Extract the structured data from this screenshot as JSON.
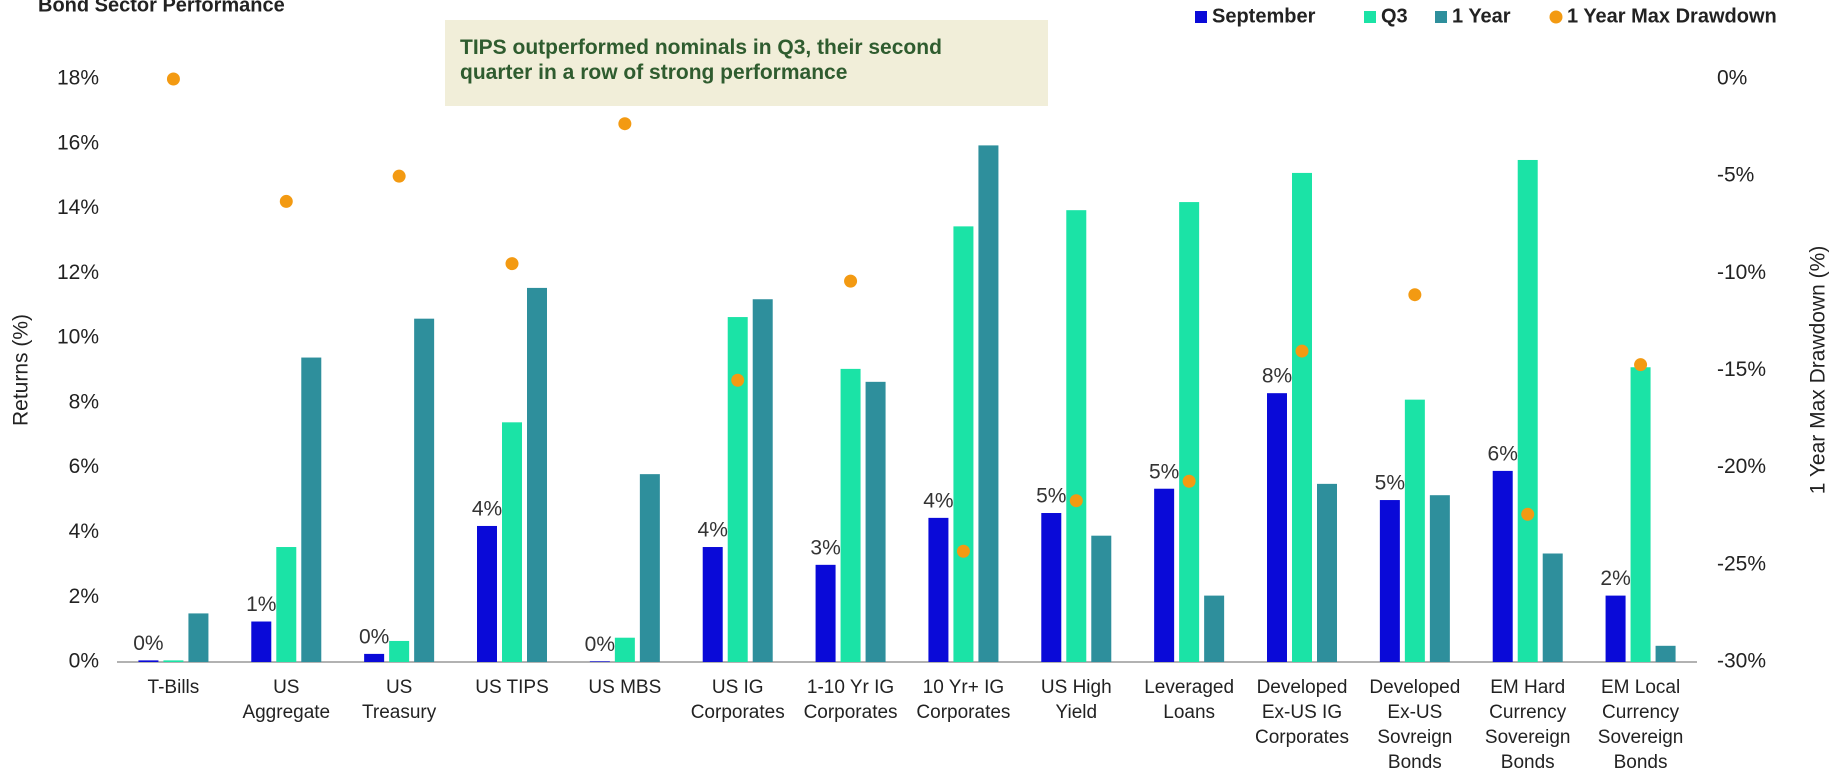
{
  "chart_data": {
    "type": "bar",
    "title": "Bond Sector Performance",
    "annotation": "TIPS outperformed nominals in Q3, their second\nquarter in a row of strong performance",
    "ylabel": "Returns (%)",
    "y2label": "1 Year Max Drawdown (%)",
    "categories": [
      "T-Bills",
      "US\nAggregate",
      "US\nTreasury",
      "US TIPS",
      "US MBS",
      "US IG\nCorporates",
      "1-10 Yr IG\nCorporates",
      "10 Yr+ IG\nCorporates",
      "US High\nYield",
      "Leveraged\nLoans",
      "Developed\nEx-US IG\nCorporates",
      "Developed\nEx-US\nSovreign\nBonds",
      "EM Hard\nCurrency\nSovereign\nBonds",
      "EM Local\nCurrency\nSovereign\nBonds"
    ],
    "series": [
      {
        "name": "September",
        "color": "#0a0ad8",
        "values": [
          0.05,
          1.25,
          0.25,
          4.2,
          0.02,
          3.55,
          3.0,
          4.45,
          4.6,
          5.35,
          8.3,
          5.0,
          5.9,
          2.05
        ],
        "value_labels": [
          "0%",
          "1%",
          "0%",
          "4%",
          "0%",
          "4%",
          "3%",
          "4%",
          "5%",
          "5%",
          "8%",
          "5%",
          "6%",
          "2%"
        ]
      },
      {
        "name": "Q3",
        "color": "#1be3a6",
        "values": [
          0.05,
          3.55,
          0.65,
          7.4,
          0.75,
          10.65,
          9.05,
          13.45,
          13.95,
          14.2,
          15.1,
          8.1,
          15.5,
          9.1
        ]
      },
      {
        "name": "1 Year",
        "color": "#2e8f9c",
        "values": [
          1.5,
          9.4,
          10.6,
          11.55,
          5.8,
          11.2,
          8.65,
          15.95,
          3.9,
          2.05,
          5.5,
          5.15,
          3.35,
          0.5
        ]
      },
      {
        "name": "1 Year Max Drawdown",
        "color": "#f39a12",
        "type": "scatter",
        "axis": "y2",
        "values": [
          0,
          -6.3,
          -5,
          -9.5,
          -2.3,
          -15.5,
          -10.4,
          -24.3,
          -21.7,
          -20.7,
          -14,
          -11.1,
          -22.4,
          -14.7
        ]
      }
    ],
    "ylim": [
      0,
      18
    ],
    "yticks": [
      {
        "value": 0,
        "label": "0%"
      },
      {
        "value": 2,
        "label": "2%"
      },
      {
        "value": 4,
        "label": "4%"
      },
      {
        "value": 6,
        "label": "6%"
      },
      {
        "value": 8,
        "label": "8%"
      },
      {
        "value": 10,
        "label": "10%"
      },
      {
        "value": 12,
        "label": "12%"
      },
      {
        "value": 14,
        "label": "14%"
      },
      {
        "value": 16,
        "label": "16%"
      },
      {
        "value": 18,
        "label": "18%"
      }
    ],
    "y2lim": [
      -30,
      0
    ],
    "y2ticks": [
      {
        "value": -30,
        "label": "-30%"
      },
      {
        "value": -25,
        "label": "-25%"
      },
      {
        "value": -20,
        "label": "-20%"
      },
      {
        "value": -15,
        "label": "-15%"
      },
      {
        "value": -10,
        "label": "-10%"
      },
      {
        "value": -5,
        "label": "-5%"
      },
      {
        "value": 0,
        "label": "0%"
      }
    ],
    "legend": "top-right"
  }
}
